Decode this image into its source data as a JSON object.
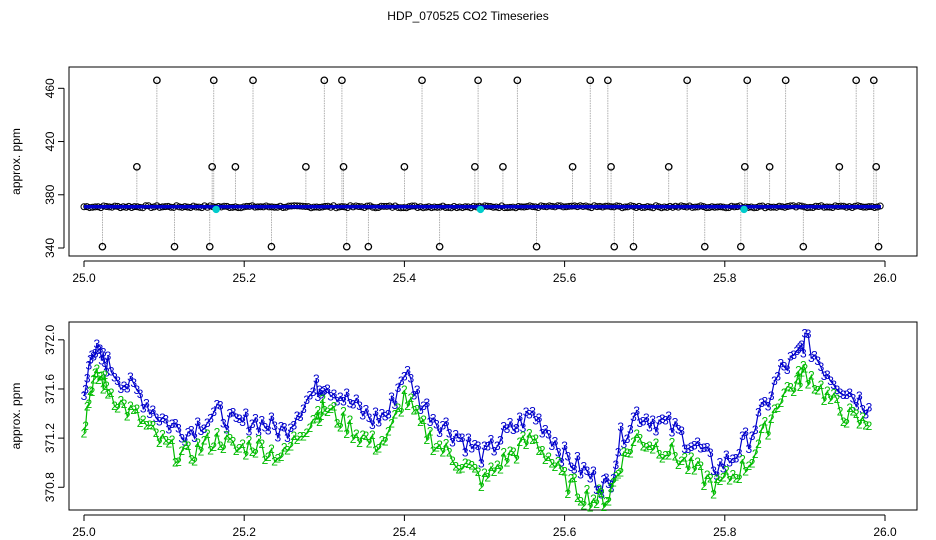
{
  "title": "HDP_070525  CO2 Timeseries",
  "colors": {
    "frame": "#000000",
    "gray_lines": "#9a9a9a",
    "blue": "#0000cc",
    "green": "#00bb00",
    "cyan": "#00cccc",
    "circle_outline": "#000000"
  },
  "chart_data": [
    {
      "type": "scatter",
      "title": "",
      "xlabel": "",
      "ylabel": "approx. ppm",
      "xlim": [
        25.0,
        26.0
      ],
      "ylim": [
        340,
        470
      ],
      "x_ticks": [
        25.0,
        25.2,
        25.4,
        25.6,
        25.8,
        26.0
      ],
      "x_tick_labels": [
        "25.0",
        "25.2",
        "25.4",
        "25.6",
        "25.8",
        "26.0"
      ],
      "y_ticks": [
        340,
        380,
        420,
        460
      ],
      "y_tick_labels": [
        "340",
        "380",
        "420",
        "460"
      ],
      "baseline_ppm": 371,
      "spikes": [
        {
          "x": 25.023,
          "y": 341
        },
        {
          "x": 25.066,
          "y": 401
        },
        {
          "x": 25.091,
          "y": 466
        },
        {
          "x": 25.113,
          "y": 341
        },
        {
          "x": 25.157,
          "y": 341
        },
        {
          "x": 25.16,
          "y": 401
        },
        {
          "x": 25.162,
          "y": 466
        },
        {
          "x": 25.189,
          "y": 401
        },
        {
          "x": 25.211,
          "y": 466
        },
        {
          "x": 25.234,
          "y": 341
        },
        {
          "x": 25.277,
          "y": 401
        },
        {
          "x": 25.3,
          "y": 466
        },
        {
          "x": 25.322,
          "y": 466
        },
        {
          "x": 25.324,
          "y": 401
        },
        {
          "x": 25.328,
          "y": 341
        },
        {
          "x": 25.355,
          "y": 341
        },
        {
          "x": 25.4,
          "y": 401
        },
        {
          "x": 25.422,
          "y": 466
        },
        {
          "x": 25.444,
          "y": 341
        },
        {
          "x": 25.488,
          "y": 401
        },
        {
          "x": 25.492,
          "y": 466
        },
        {
          "x": 25.523,
          "y": 401
        },
        {
          "x": 25.541,
          "y": 466
        },
        {
          "x": 25.565,
          "y": 341
        },
        {
          "x": 25.61,
          "y": 401
        },
        {
          "x": 25.632,
          "y": 466
        },
        {
          "x": 25.654,
          "y": 466
        },
        {
          "x": 25.658,
          "y": 401
        },
        {
          "x": 25.662,
          "y": 341
        },
        {
          "x": 25.686,
          "y": 341
        },
        {
          "x": 25.73,
          "y": 401
        },
        {
          "x": 25.753,
          "y": 466
        },
        {
          "x": 25.775,
          "y": 341
        },
        {
          "x": 25.82,
          "y": 341
        },
        {
          "x": 25.825,
          "y": 401
        },
        {
          "x": 25.828,
          "y": 466
        },
        {
          "x": 25.856,
          "y": 401
        },
        {
          "x": 25.876,
          "y": 466
        },
        {
          "x": 25.898,
          "y": 341
        },
        {
          "x": 25.943,
          "y": 401
        },
        {
          "x": 25.964,
          "y": 466
        },
        {
          "x": 25.986,
          "y": 466
        },
        {
          "x": 25.989,
          "y": 401
        },
        {
          "x": 25.992,
          "y": 341
        }
      ],
      "cyan_markers": [
        {
          "x": 25.165,
          "y": 369
        },
        {
          "x": 25.495,
          "y": 369
        },
        {
          "x": 25.824,
          "y": 369
        }
      ]
    },
    {
      "type": "line",
      "title": "",
      "xlabel": "",
      "ylabel": "approx. ppm",
      "xlim": [
        25.0,
        26.0
      ],
      "ylim": [
        370.68,
        372.08
      ],
      "x_ticks": [
        25.0,
        25.2,
        25.4,
        25.6,
        25.8,
        26.0
      ],
      "x_tick_labels": [
        "25.0",
        "25.2",
        "25.4",
        "25.6",
        "25.8",
        "26.0"
      ],
      "y_ticks": [
        370.8,
        371.2,
        371.6,
        372.0
      ],
      "y_tick_labels": [
        "370.8",
        "371.2",
        "371.6",
        "372.0"
      ],
      "series": [
        {
          "marker": "3",
          "color": "#0000cc",
          "x": [
            25.0,
            25.01,
            25.02,
            25.03,
            25.05,
            25.07,
            25.09,
            25.11,
            25.13,
            25.15,
            25.17,
            25.19,
            25.21,
            25.23,
            25.25,
            25.27,
            25.29,
            25.3,
            25.32,
            25.34,
            25.36,
            25.38,
            25.4,
            25.42,
            25.44,
            25.46,
            25.48,
            25.5,
            25.52,
            25.54,
            25.56,
            25.58,
            25.6,
            25.62,
            25.64,
            25.655,
            25.67,
            25.69,
            25.71,
            25.73,
            25.75,
            25.77,
            25.79,
            25.81,
            25.83,
            25.85,
            25.87,
            25.89,
            25.9,
            25.92,
            25.94,
            25.96,
            25.98
          ],
          "y": [
            371.5,
            371.95,
            371.85,
            371.8,
            371.65,
            371.55,
            371.4,
            371.3,
            371.25,
            371.35,
            371.4,
            371.3,
            371.35,
            371.3,
            371.25,
            371.45,
            371.6,
            371.65,
            371.55,
            371.45,
            371.35,
            371.4,
            371.75,
            371.5,
            371.35,
            371.25,
            371.15,
            371.05,
            371.2,
            371.3,
            371.4,
            371.25,
            371.05,
            370.95,
            370.85,
            370.8,
            371.2,
            371.4,
            371.35,
            371.3,
            371.2,
            371.1,
            370.95,
            371.05,
            371.2,
            371.45,
            371.75,
            371.85,
            372.0,
            371.8,
            371.65,
            371.55,
            371.45
          ]
        },
        {
          "marker": "2",
          "color": "#00bb00",
          "x": [
            25.0,
            25.01,
            25.02,
            25.03,
            25.05,
            25.07,
            25.09,
            25.11,
            25.13,
            25.15,
            25.17,
            25.19,
            25.21,
            25.23,
            25.25,
            25.27,
            25.29,
            25.3,
            25.32,
            25.34,
            25.36,
            25.38,
            25.4,
            25.42,
            25.44,
            25.46,
            25.48,
            25.5,
            25.52,
            25.54,
            25.56,
            25.58,
            25.6,
            25.62,
            25.64,
            25.655,
            25.67,
            25.69,
            25.71,
            25.73,
            25.75,
            25.77,
            25.79,
            25.81,
            25.83,
            25.85,
            25.87,
            25.89,
            25.9,
            25.92,
            25.94,
            25.96,
            25.98
          ],
          "y": [
            371.3,
            371.65,
            371.7,
            371.6,
            371.45,
            371.35,
            371.2,
            371.1,
            371.05,
            371.15,
            371.2,
            371.1,
            371.15,
            371.1,
            371.05,
            371.25,
            371.4,
            371.45,
            371.35,
            371.25,
            371.15,
            371.2,
            371.55,
            371.3,
            371.15,
            371.05,
            370.95,
            370.85,
            371.0,
            371.1,
            371.2,
            371.05,
            370.85,
            370.75,
            370.7,
            370.72,
            371.0,
            371.2,
            371.15,
            371.1,
            371.0,
            370.9,
            370.8,
            370.9,
            371.0,
            371.25,
            371.55,
            371.65,
            371.75,
            371.6,
            371.45,
            371.35,
            371.3
          ]
        }
      ]
    }
  ]
}
